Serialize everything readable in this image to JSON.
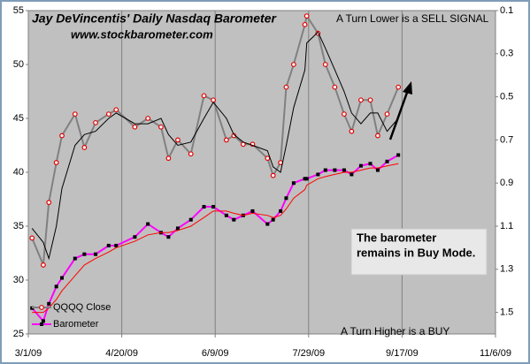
{
  "chart_data": {
    "type": "line",
    "title": "Jay DeVincentis' Daily Nasdaq Barometer",
    "subtitle": "www.stockbarometer.com",
    "annotations": [
      "A Turn Lower is a SELL  SIGNAL",
      "A Turn Higher is a BUY"
    ],
    "box_text": [
      "The barometer",
      "remains in Buy Mode."
    ],
    "x": [
      "2009-03-03",
      "2009-03-09",
      "2009-03-12",
      "2009-03-16",
      "2009-03-19",
      "2009-03-26",
      "2009-03-31",
      "2009-04-06",
      "2009-04-13",
      "2009-04-17",
      "2009-04-27",
      "2009-05-04",
      "2009-05-11",
      "2009-05-15",
      "2009-05-20",
      "2009-05-27",
      "2009-06-03",
      "2009-06-08",
      "2009-06-15",
      "2009-06-19",
      "2009-06-24",
      "2009-06-29",
      "2009-07-07",
      "2009-07-10",
      "2009-07-14",
      "2009-07-17",
      "2009-07-21",
      "2009-07-27",
      "2009-07-28",
      "2009-08-03",
      "2009-08-07",
      "2009-08-12",
      "2009-08-17",
      "2009-08-21",
      "2009-08-26",
      "2009-08-31",
      "2009-09-04",
      "2009-09-09",
      "2009-09-15"
    ],
    "series": [
      {
        "name": "QQQQ Close",
        "color": "#808080",
        "marker": "circle",
        "marker_color": "#e00000",
        "values": [
          33.9,
          31.4,
          37.2,
          40.9,
          43.4,
          45.4,
          42.3,
          44.6,
          45.4,
          45.8,
          44.2,
          45,
          44.2,
          41.3,
          43,
          41.7,
          47.1,
          46.7,
          43,
          43.4,
          42.6,
          42.6,
          41.3,
          39.7,
          40.9,
          47.9,
          50,
          53.7,
          54.5,
          52.9,
          50,
          47.9,
          45.4,
          43.8,
          46.7,
          46.7,
          43.4,
          45.4,
          47.9
        ]
      },
      {
        "color": "#000000",
        "values": [
          34.8,
          33.5,
          32,
          35,
          38.5,
          42.5,
          43.5,
          43.8,
          45,
          45.5,
          44.5,
          44.5,
          45,
          43.5,
          42.5,
          42.8,
          45,
          46.5,
          45,
          43.5,
          42.8,
          42.5,
          42,
          40.5,
          40,
          42.5,
          46,
          49.5,
          52,
          53,
          51.5,
          49.5,
          47.5,
          45.5,
          44.5,
          45.5,
          45.5,
          43.8,
          45
        ]
      },
      {
        "name": "Barometer",
        "color": "#ff00ff",
        "marker": "square",
        "marker_color": "#000000",
        "axis": "y2",
        "values": [
          1.48,
          1.54,
          1.46,
          1.38,
          1.34,
          1.25,
          1.23,
          1.23,
          1.19,
          1.19,
          1.15,
          1.09,
          1.13,
          1.15,
          1.11,
          1.07,
          1.01,
          1.01,
          1.05,
          1.07,
          1.05,
          1.03,
          1.09,
          1.07,
          1.03,
          0.97,
          0.9,
          0.88,
          0.88,
          0.86,
          0.84,
          0.84,
          0.84,
          0.86,
          0.82,
          0.81,
          0.84,
          0.8,
          0.77
        ]
      },
      {
        "color": "#ff0000",
        "axis": "y2",
        "values": [
          1.5,
          1.5,
          1.48,
          1.44,
          1.4,
          1.33,
          1.28,
          1.25,
          1.22,
          1.2,
          1.17,
          1.14,
          1.13,
          1.13,
          1.12,
          1.1,
          1.06,
          1.03,
          1.03,
          1.04,
          1.05,
          1.04,
          1.05,
          1.06,
          1.05,
          1.02,
          0.97,
          0.93,
          0.91,
          0.88,
          0.87,
          0.86,
          0.85,
          0.85,
          0.84,
          0.83,
          0.83,
          0.82,
          0.81
        ]
      }
    ],
    "xlim": [
      "2009-03-01",
      "2009-11-06"
    ],
    "xticks": [
      {
        "value": "2009-03-01",
        "label": "3/1/09"
      },
      {
        "value": "2009-04-20",
        "label": "4/20/09"
      },
      {
        "value": "2009-06-09",
        "label": "6/9/09"
      },
      {
        "value": "2009-07-29",
        "label": "7/29/09"
      },
      {
        "value": "2009-09-17",
        "label": "9/17/09"
      },
      {
        "value": "2009-11-06",
        "label": "11/6/09"
      }
    ],
    "ylim": [
      25,
      55
    ],
    "yticks": [
      25,
      30,
      35,
      40,
      45,
      50,
      55
    ],
    "y2lim": [
      1.6,
      0.1
    ],
    "y2ticks": [
      0.1,
      0.3,
      0.5,
      0.7,
      0.9,
      1.1,
      1.3,
      1.5
    ],
    "grid": "x",
    "legend": "lower left",
    "background": "#c0c0c0"
  }
}
